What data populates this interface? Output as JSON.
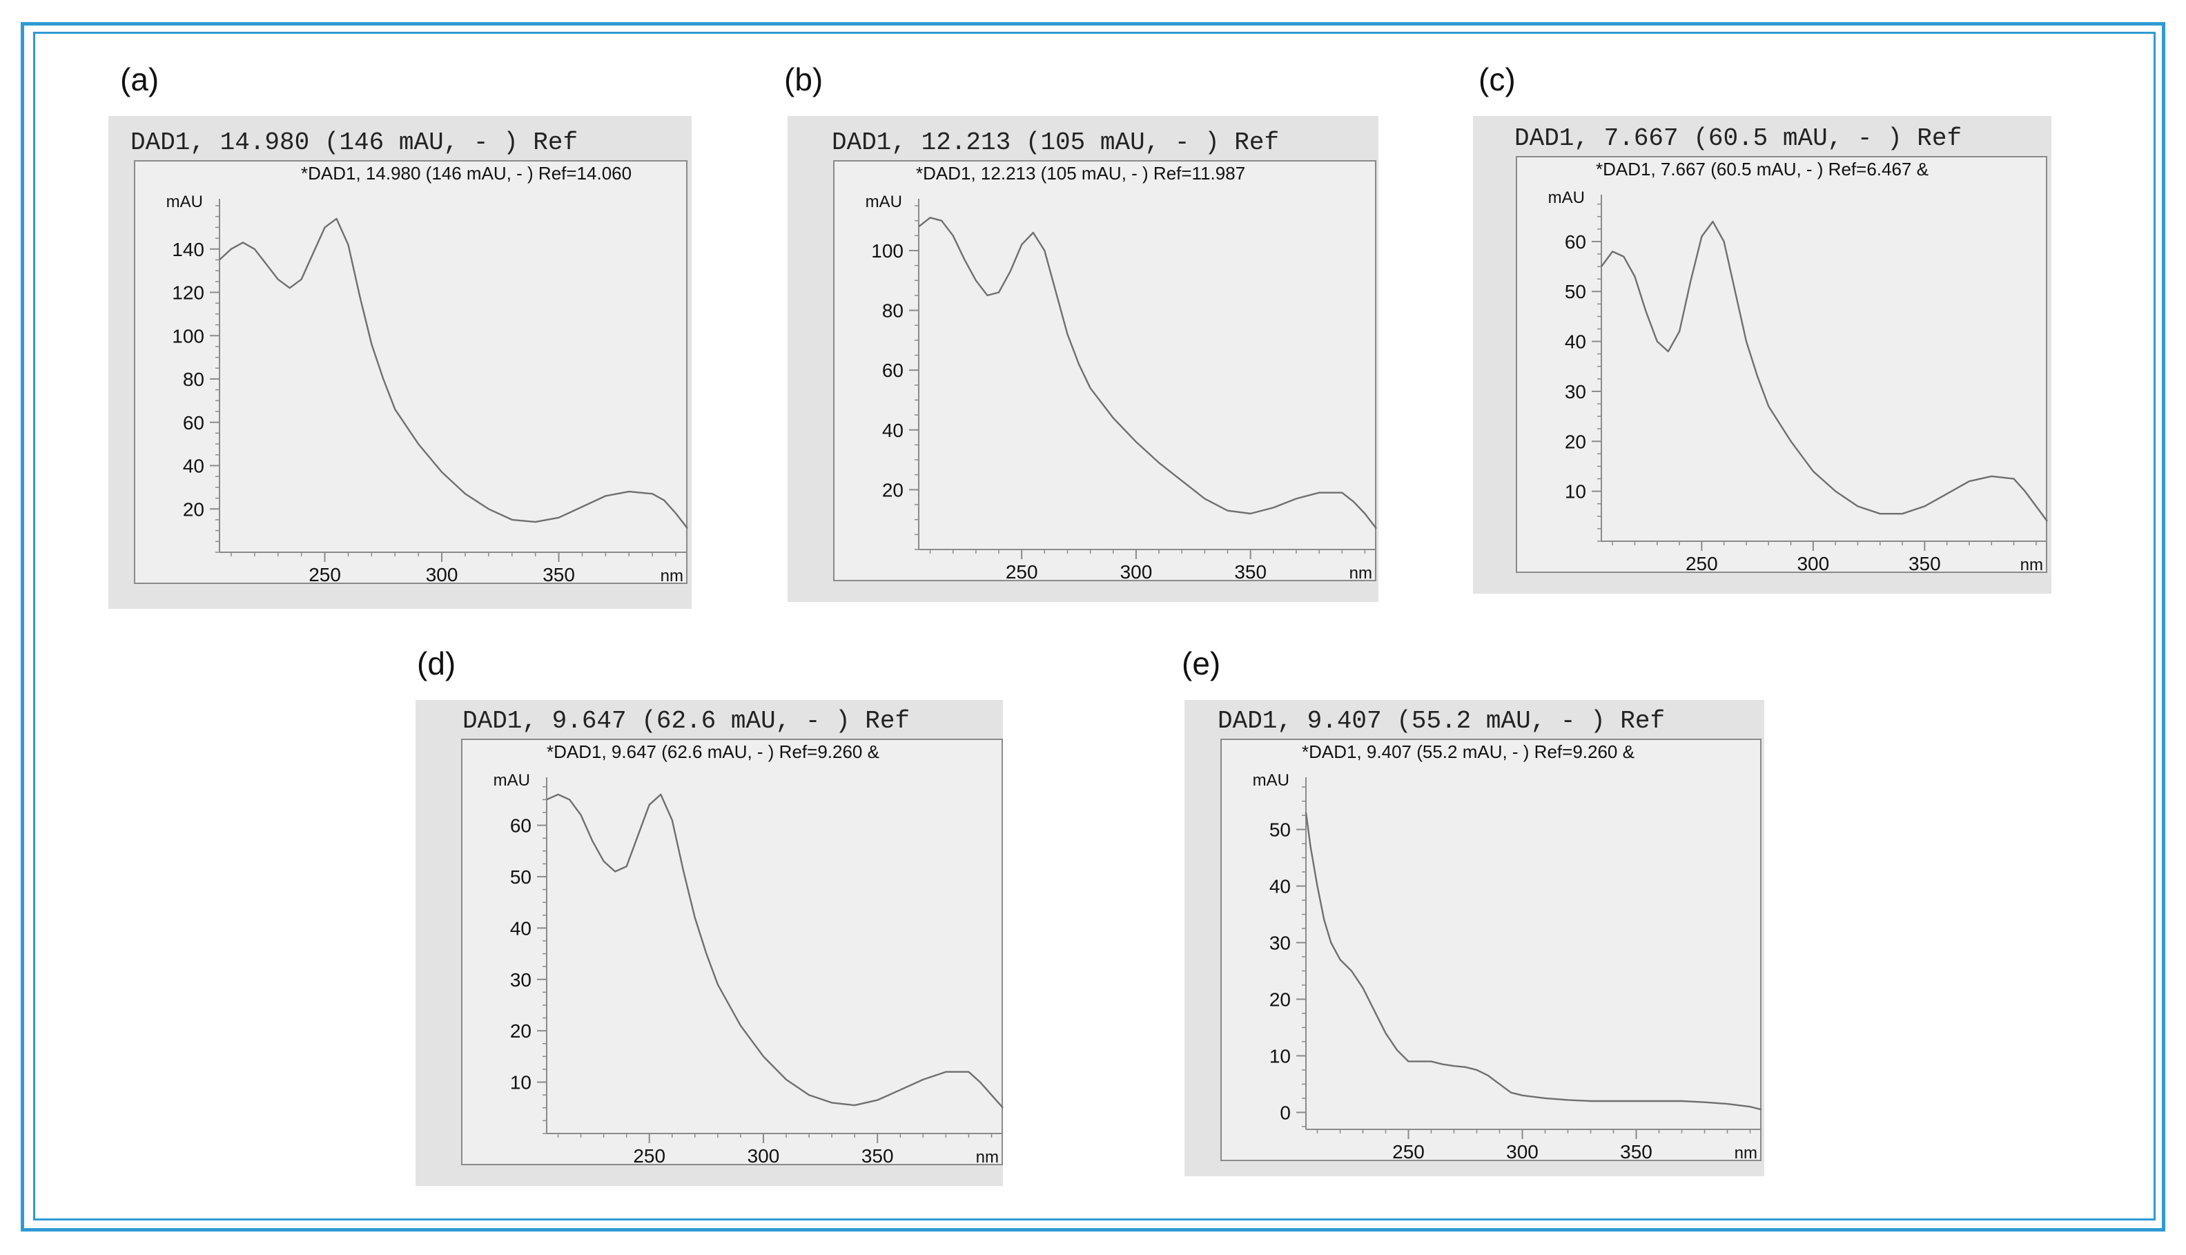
{
  "colors": {
    "frame": "#2f9ad4",
    "panel_bg": "#e3e3e3",
    "plot_bg": "#efefef",
    "curve": "#6f6f6f"
  },
  "chart_data": [
    {
      "type": "line",
      "panel_label": "(a)",
      "header": "DAD1, 14.980 (146 mAU, - ) Ref",
      "subtitle": "*DAD1, 14.980 (146 mAU, - ) Ref=14.060",
      "ylabel": "mAU",
      "xlabel": "nm",
      "xlim": [
        205,
        405
      ],
      "ylim": [
        0,
        160
      ],
      "x_ticks": [
        250,
        300,
        350
      ],
      "y_ticks": [
        20,
        40,
        60,
        80,
        100,
        120,
        140
      ],
      "x": [
        205,
        210,
        215,
        220,
        225,
        230,
        235,
        240,
        245,
        250,
        255,
        260,
        265,
        270,
        275,
        280,
        290,
        300,
        310,
        320,
        330,
        340,
        350,
        360,
        370,
        380,
        390,
        395,
        400,
        405
      ],
      "y": [
        135,
        140,
        143,
        140,
        133,
        126,
        122,
        126,
        138,
        150,
        154,
        142,
        118,
        96,
        80,
        66,
        50,
        37,
        27,
        20,
        15,
        14,
        16,
        21,
        26,
        28,
        27,
        24,
        18,
        11
      ]
    },
    {
      "type": "line",
      "panel_label": "(b)",
      "header": "DAD1, 12.213 (105 mAU, - ) Ref",
      "subtitle": "*DAD1, 12.213 (105 mAU, - ) Ref=11.987",
      "ylabel": "mAU",
      "xlabel": "nm",
      "xlim": [
        205,
        405
      ],
      "ylim": [
        0,
        115
      ],
      "x_ticks": [
        250,
        300,
        350
      ],
      "y_ticks": [
        20,
        40,
        60,
        80,
        100
      ],
      "x": [
        205,
        210,
        215,
        220,
        225,
        230,
        235,
        240,
        245,
        250,
        255,
        260,
        265,
        270,
        275,
        280,
        290,
        300,
        310,
        320,
        330,
        340,
        350,
        360,
        370,
        380,
        390,
        395,
        400,
        405
      ],
      "y": [
        108,
        111,
        110,
        105,
        97,
        90,
        85,
        86,
        93,
        102,
        106,
        100,
        86,
        72,
        62,
        54,
        44,
        36,
        29,
        23,
        17,
        13,
        12,
        14,
        17,
        19,
        19,
        16,
        12,
        7
      ]
    },
    {
      "type": "line",
      "panel_label": "(c)",
      "header": "DAD1, 7.667 (60.5 mAU, - ) Ref",
      "subtitle": "*DAD1, 7.667 (60.5 mAU, - ) Ref=6.467 &",
      "ylabel": "mAU",
      "xlabel": "nm",
      "xlim": [
        205,
        405
      ],
      "ylim": [
        0,
        68
      ],
      "x_ticks": [
        250,
        300,
        350
      ],
      "y_ticks": [
        10,
        20,
        30,
        40,
        50,
        60
      ],
      "x": [
        205,
        210,
        215,
        220,
        225,
        230,
        235,
        240,
        245,
        250,
        255,
        260,
        265,
        270,
        275,
        280,
        290,
        300,
        310,
        320,
        330,
        340,
        350,
        360,
        370,
        380,
        390,
        395,
        400,
        405
      ],
      "y": [
        55,
        58,
        57,
        53,
        46,
        40,
        38,
        42,
        52,
        61,
        64,
        60,
        50,
        40,
        33,
        27,
        20,
        14,
        10,
        7,
        5.5,
        5.5,
        7,
        9.5,
        12,
        13,
        12.5,
        10,
        7,
        4
      ]
    },
    {
      "type": "line",
      "panel_label": "(d)",
      "header": "DAD1, 9.647 (62.6 mAU, - ) Ref",
      "subtitle": "*DAD1, 9.647 (62.6 mAU, - ) Ref=9.260 &",
      "ylabel": "mAU",
      "xlabel": "nm",
      "xlim": [
        205,
        405
      ],
      "ylim": [
        0,
        68
      ],
      "x_ticks": [
        250,
        300,
        350
      ],
      "y_ticks": [
        10,
        20,
        30,
        40,
        50,
        60
      ],
      "x": [
        205,
        210,
        215,
        220,
        225,
        230,
        235,
        240,
        245,
        250,
        255,
        260,
        265,
        270,
        275,
        280,
        290,
        300,
        310,
        320,
        330,
        340,
        350,
        360,
        370,
        380,
        390,
        395,
        400,
        405
      ],
      "y": [
        65,
        66,
        65,
        62,
        57,
        53,
        51,
        52,
        58,
        64,
        66,
        61,
        51,
        42,
        35,
        29,
        21,
        15,
        10.5,
        7.5,
        6,
        5.5,
        6.5,
        8.5,
        10.5,
        12,
        12,
        10,
        7.5,
        5
      ]
    },
    {
      "type": "line",
      "panel_label": "(e)",
      "header": "DAD1, 9.407 (55.2 mAU, - ) Ref",
      "subtitle": "*DAD1, 9.407 (55.2 mAU, - ) Ref=9.260 &",
      "ylabel": "mAU",
      "xlabel": "nm",
      "xlim": [
        205,
        405
      ],
      "ylim": [
        -3,
        58
      ],
      "x_ticks": [
        250,
        300,
        350
      ],
      "y_ticks": [
        0,
        10,
        20,
        30,
        40,
        50
      ],
      "x": [
        205,
        207,
        210,
        213,
        216,
        220,
        225,
        230,
        235,
        240,
        245,
        250,
        255,
        260,
        265,
        270,
        275,
        280,
        285,
        290,
        295,
        300,
        310,
        320,
        330,
        340,
        350,
        360,
        370,
        380,
        390,
        400,
        405
      ],
      "y": [
        53,
        47,
        40,
        34,
        30,
        27,
        25,
        22,
        18,
        14,
        11,
        9,
        9,
        9,
        8.5,
        8.2,
        8,
        7.5,
        6.5,
        5,
        3.5,
        3,
        2.5,
        2.2,
        2,
        2,
        2,
        2,
        2,
        1.8,
        1.5,
        1,
        0.5
      ]
    }
  ]
}
